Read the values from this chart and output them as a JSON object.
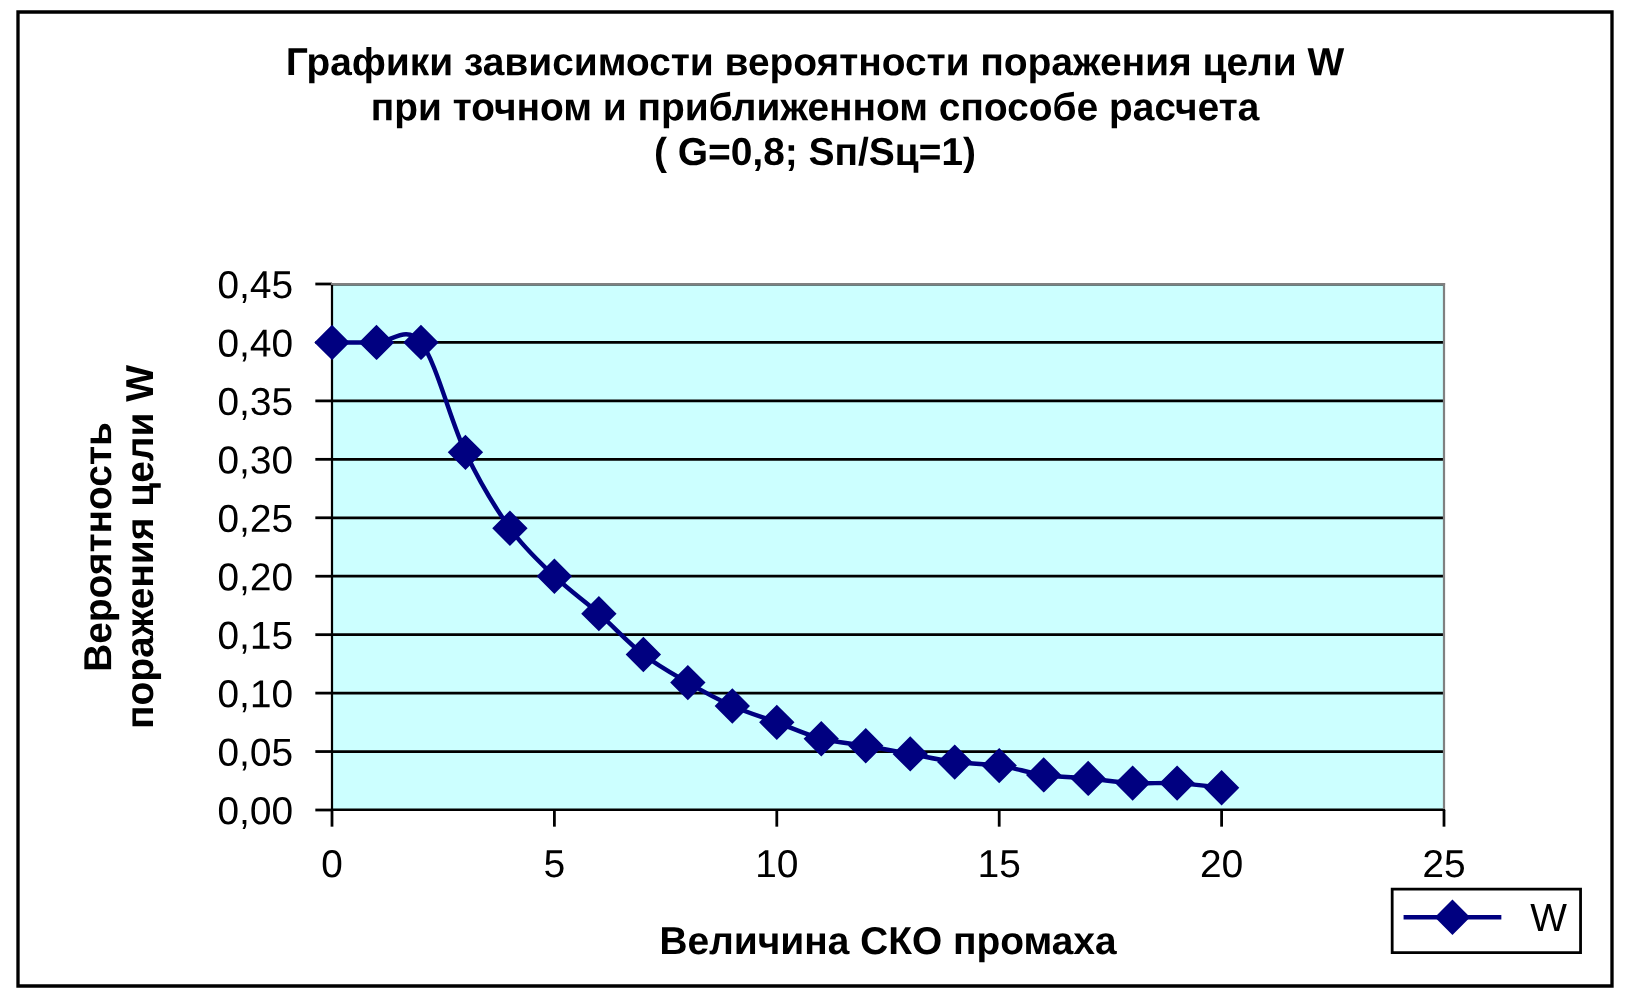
{
  "chart_data": {
    "type": "line",
    "title": "Графики зависимости вероятности поражения цели W\nпри точном и приближенном способе расчета\n( G=0,8; Sп/Sц=1)",
    "xlabel": "Величина СКО промаха",
    "ylabel": "Вероятность\nпоражения цели W",
    "x": [
      0,
      1,
      2,
      3,
      4,
      5,
      6,
      7,
      8,
      9,
      10,
      11,
      12,
      13,
      14,
      15,
      16,
      17,
      18,
      19,
      20
    ],
    "series": [
      {
        "name": "W",
        "color": "#000080",
        "values": [
          0.4,
          0.4,
          0.4,
          0.306,
          0.241,
          0.2,
          0.168,
          0.133,
          0.109,
          0.089,
          0.075,
          0.061,
          0.055,
          0.048,
          0.041,
          0.038,
          0.03,
          0.027,
          0.023,
          0.023,
          0.019
        ]
      }
    ],
    "xlim": [
      0,
      25
    ],
    "xticks": [
      0,
      5,
      10,
      15,
      20,
      25
    ],
    "ylim": [
      0,
      0.45
    ],
    "yticks": [
      {
        "value": 0,
        "label": "0,00"
      },
      {
        "value": 0.05,
        "label": "0,05"
      },
      {
        "value": 0.1,
        "label": "0,10"
      },
      {
        "value": 0.15,
        "label": "0,15"
      },
      {
        "value": 0.2,
        "label": "0,20"
      },
      {
        "value": 0.25,
        "label": "0,25"
      },
      {
        "value": 0.3,
        "label": "0,30"
      },
      {
        "value": 0.35,
        "label": "0,35"
      },
      {
        "value": 0.4,
        "label": "0,40"
      },
      {
        "value": 0.45,
        "label": "0,45"
      }
    ],
    "grid": "y",
    "legend": "bottom right",
    "marker": "diamond",
    "line_style": "solid"
  }
}
